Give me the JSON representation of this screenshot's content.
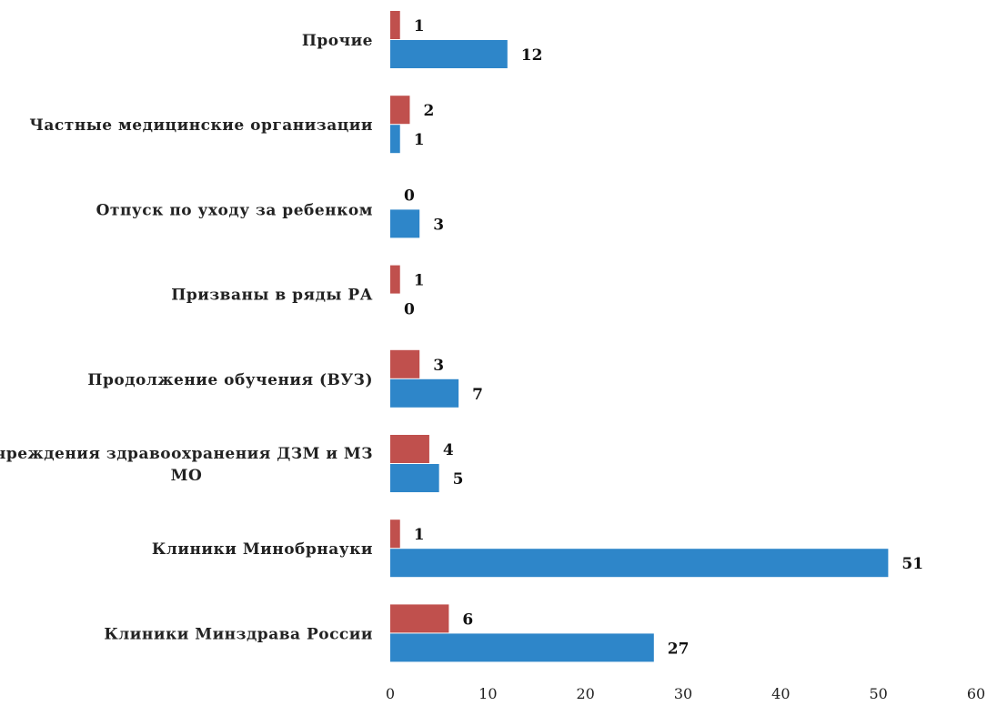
{
  "chart_data": {
    "type": "bar",
    "orientation": "horizontal",
    "categories": [
      "Прочие",
      "Частные медицинские организации",
      "Отпуск по уходу за ребенком",
      "Призваны в ряды РА",
      "Продолжение обучения (ВУЗ)",
      [
        "Учреждения здравоохранения ДЗМ и МЗ",
        "МО"
      ],
      "Клиники Минобрнауки",
      "Клиники Минздрава России"
    ],
    "series": [
      {
        "color": "#c0504d",
        "values": [
          1,
          2,
          0,
          1,
          3,
          4,
          1,
          6
        ]
      },
      {
        "color": "#2e86c9",
        "values": [
          12,
          1,
          3,
          0,
          7,
          5,
          51,
          27
        ]
      }
    ],
    "xlim": [
      0,
      60
    ],
    "xticks": [
      "0",
      "10",
      "20",
      "30",
      "40",
      "50",
      "60"
    ],
    "grid": false,
    "legend": "none"
  }
}
